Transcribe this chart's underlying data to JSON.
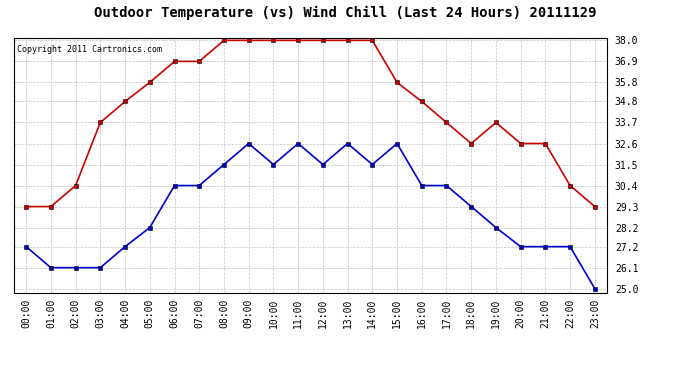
{
  "title": "Outdoor Temperature (vs) Wind Chill (Last 24 Hours) 20111129",
  "copyright": "Copyright 2011 Cartronics.com",
  "hours": [
    "00:00",
    "01:00",
    "02:00",
    "03:00",
    "04:00",
    "05:00",
    "06:00",
    "07:00",
    "08:00",
    "09:00",
    "10:00",
    "11:00",
    "12:00",
    "13:00",
    "14:00",
    "15:00",
    "16:00",
    "17:00",
    "18:00",
    "19:00",
    "20:00",
    "21:00",
    "22:00",
    "23:00"
  ],
  "temp": [
    29.3,
    29.3,
    30.4,
    33.7,
    34.8,
    35.8,
    36.9,
    36.9,
    38.0,
    38.0,
    38.0,
    38.0,
    38.0,
    38.0,
    38.0,
    35.8,
    34.8,
    33.7,
    32.6,
    33.7,
    32.6,
    32.6,
    30.4,
    29.3
  ],
  "windchill": [
    27.2,
    26.1,
    26.1,
    26.1,
    27.2,
    28.2,
    30.4,
    30.4,
    31.5,
    32.6,
    31.5,
    32.6,
    31.5,
    32.6,
    31.5,
    32.6,
    30.4,
    30.4,
    29.3,
    28.2,
    27.2,
    27.2,
    27.2,
    25.0
  ],
  "temp_color": "#cc0000",
  "windchill_color": "#0000cc",
  "bg_color": "#ffffff",
  "grid_color": "#bbbbbb",
  "ylim_min": 24.8,
  "ylim_max": 38.15,
  "yticks": [
    25.0,
    26.1,
    27.2,
    28.2,
    29.3,
    30.4,
    31.5,
    32.6,
    33.7,
    34.8,
    35.8,
    36.9,
    38.0
  ],
  "title_fontsize": 10,
  "copyright_fontsize": 6,
  "tick_fontsize": 7,
  "marker": "s",
  "marker_size": 3,
  "linewidth": 1.2
}
